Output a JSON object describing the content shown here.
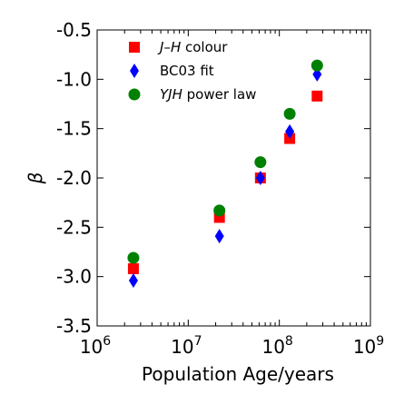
{
  "chart_data": {
    "type": "scatter",
    "xlabel": "Population Age/years",
    "ylabel": "β",
    "xscale": "log",
    "xlim": [
      1000000,
      1000000000
    ],
    "ylim": [
      -3.5,
      -0.5
    ],
    "xticks": [
      {
        "value": 1000000,
        "base": "10",
        "exp": "6"
      },
      {
        "value": 10000000,
        "base": "10",
        "exp": "7"
      },
      {
        "value": 100000000,
        "base": "10",
        "exp": "8"
      },
      {
        "value": 1000000000,
        "base": "10",
        "exp": "9"
      }
    ],
    "yticks": [
      {
        "value": -3.5,
        "label": "-3.5"
      },
      {
        "value": -3.0,
        "label": "-3.0"
      },
      {
        "value": -2.5,
        "label": "-2.5"
      },
      {
        "value": -2.0,
        "label": "-2.0"
      },
      {
        "value": -1.5,
        "label": "-1.5"
      },
      {
        "value": -1.0,
        "label": "-1.0"
      },
      {
        "value": -0.5,
        "label": "-0.5"
      }
    ],
    "grid": false,
    "legend_position": "top-left",
    "series": [
      {
        "name": "J–H colour",
        "marker": "square",
        "color": "#ff0000",
        "points": [
          {
            "x": 2500000,
            "y": -2.92
          },
          {
            "x": 22000000,
            "y": -2.4
          },
          {
            "x": 62000000,
            "y": -2.0
          },
          {
            "x": 130000000,
            "y": -1.6
          },
          {
            "x": 260000000,
            "y": -1.17
          }
        ]
      },
      {
        "name": "BC03 fit",
        "marker": "diamond",
        "color": "#0000ff",
        "points": [
          {
            "x": 2500000,
            "y": -3.04
          },
          {
            "x": 22000000,
            "y": -2.59
          },
          {
            "x": 62000000,
            "y": -2.0
          },
          {
            "x": 130000000,
            "y": -1.53
          },
          {
            "x": 260000000,
            "y": -0.95
          }
        ]
      },
      {
        "name": "YJH power law",
        "marker": "circle",
        "color": "#008000",
        "points": [
          {
            "x": 2500000,
            "y": -2.81
          },
          {
            "x": 22000000,
            "y": -2.33
          },
          {
            "x": 62000000,
            "y": -1.84
          },
          {
            "x": 130000000,
            "y": -1.35
          },
          {
            "x": 260000000,
            "y": -0.86
          }
        ]
      }
    ],
    "legend": [
      {
        "parts": [
          {
            "text": "J",
            "italic": true
          },
          {
            "text": "–",
            "italic": false
          },
          {
            "text": "H",
            "italic": true
          },
          {
            "text": " colour",
            "italic": false
          }
        ]
      },
      {
        "parts": [
          {
            "text": "BC03 fit",
            "italic": false
          }
        ]
      },
      {
        "parts": [
          {
            "text": "YJH",
            "italic": true
          },
          {
            "text": " power law",
            "italic": false
          }
        ]
      }
    ]
  }
}
